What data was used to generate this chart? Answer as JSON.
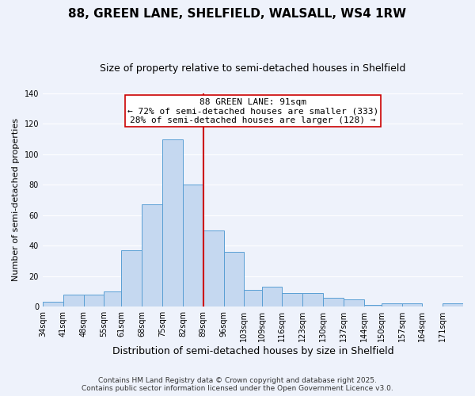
{
  "title": "88, GREEN LANE, SHELFIELD, WALSALL, WS4 1RW",
  "subtitle": "Size of property relative to semi-detached houses in Shelfield",
  "xlabel": "Distribution of semi-detached houses by size in Shelfield",
  "ylabel": "Number of semi-detached properties",
  "bin_labels": [
    "34sqm",
    "41sqm",
    "48sqm",
    "55sqm",
    "61sqm",
    "68sqm",
    "75sqm",
    "82sqm",
    "89sqm",
    "96sqm",
    "103sqm",
    "109sqm",
    "116sqm",
    "123sqm",
    "130sqm",
    "137sqm",
    "144sqm",
    "150sqm",
    "157sqm",
    "164sqm",
    "171sqm"
  ],
  "bin_edges": [
    34,
    41,
    48,
    55,
    61,
    68,
    75,
    82,
    89,
    96,
    103,
    109,
    116,
    123,
    130,
    137,
    144,
    150,
    157,
    164,
    171,
    178
  ],
  "counts": [
    3,
    8,
    8,
    10,
    37,
    67,
    110,
    80,
    50,
    36,
    11,
    13,
    9,
    9,
    6,
    5,
    1,
    2,
    2,
    0,
    2
  ],
  "bar_color": "#c5d8f0",
  "bar_edge_color": "#5a9fd4",
  "vline_x": 89,
  "vline_color": "#cc0000",
  "annotation_title": "88 GREEN LANE: 91sqm",
  "annotation_line1": "← 72% of semi-detached houses are smaller (333)",
  "annotation_line2": "28% of semi-detached houses are larger (128) →",
  "annotation_box_color": "#ffffff",
  "annotation_box_edge": "#cc0000",
  "ylim": [
    0,
    140
  ],
  "yticks": [
    0,
    20,
    40,
    60,
    80,
    100,
    120,
    140
  ],
  "footer1": "Contains HM Land Registry data © Crown copyright and database right 2025.",
  "footer2": "Contains public sector information licensed under the Open Government Licence v3.0.",
  "bg_color": "#eef2fb",
  "plot_bg_color": "#eef2fb",
  "grid_color": "#ffffff",
  "title_fontsize": 11,
  "subtitle_fontsize": 9,
  "xlabel_fontsize": 9,
  "ylabel_fontsize": 8,
  "tick_fontsize": 7,
  "footer_fontsize": 6.5,
  "annotation_fontsize": 8
}
